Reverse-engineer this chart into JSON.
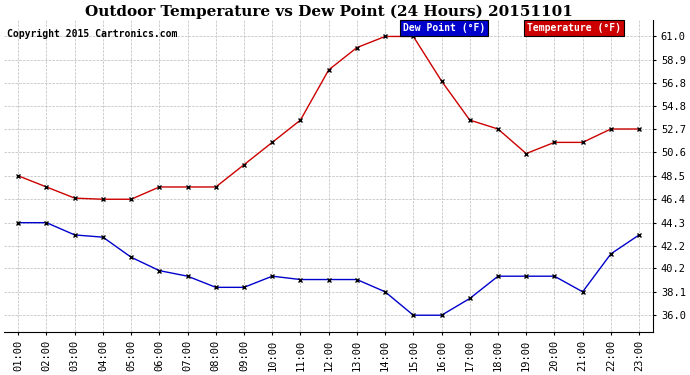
{
  "title": "Outdoor Temperature vs Dew Point (24 Hours) 20151101",
  "copyright": "Copyright 2015 Cartronics.com",
  "legend_dew": "Dew Point (°F)",
  "legend_temp": "Temperature (°F)",
  "hours": [
    "01:00",
    "02:00",
    "03:00",
    "04:00",
    "05:00",
    "06:00",
    "07:00",
    "08:00",
    "09:00",
    "10:00",
    "11:00",
    "12:00",
    "13:00",
    "14:00",
    "15:00",
    "16:00",
    "17:00",
    "18:00",
    "19:00",
    "20:00",
    "21:00",
    "22:00",
    "23:00"
  ],
  "temperature": [
    48.5,
    47.5,
    46.5,
    46.4,
    46.4,
    47.5,
    47.5,
    47.5,
    49.5,
    51.5,
    53.5,
    58.0,
    60.0,
    61.0,
    61.0,
    57.0,
    53.5,
    52.7,
    50.5,
    51.5,
    51.5,
    52.7,
    52.7
  ],
  "dew_point": [
    44.3,
    44.3,
    43.2,
    43.0,
    41.2,
    40.0,
    39.5,
    38.5,
    38.5,
    39.5,
    39.2,
    39.2,
    39.2,
    38.1,
    36.0,
    36.0,
    37.5,
    39.5,
    39.5,
    39.5,
    38.1,
    41.5,
    43.2
  ],
  "ylim": [
    34.5,
    62.5
  ],
  "yticks": [
    36.0,
    38.1,
    40.2,
    42.2,
    44.3,
    46.4,
    48.5,
    50.6,
    52.7,
    54.8,
    56.8,
    58.9,
    61.0
  ],
  "bg_color": "#ffffff",
  "grid_color": "#bbbbbb",
  "temp_color": "#cc0000",
  "dew_color": "#0000cc",
  "title_fontsize": 11,
  "copyright_fontsize": 7,
  "tick_fontsize": 7.5,
  "legend_dew_color": "#0000cc",
  "legend_temp_color": "#cc0000",
  "legend_text_color": "#ffffff"
}
